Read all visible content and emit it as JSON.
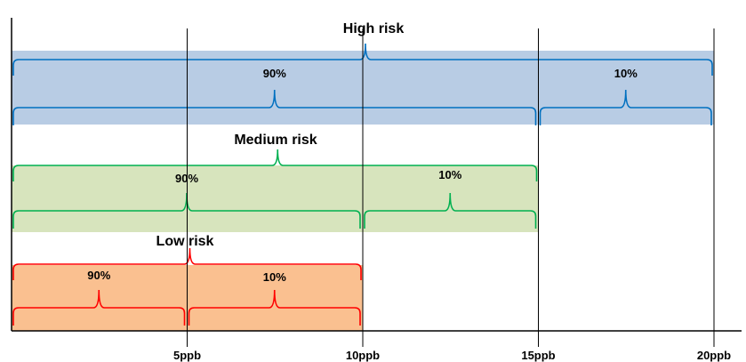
{
  "axis": {
    "ticks": [
      {
        "value": 5,
        "label": "5ppb"
      },
      {
        "value": 10,
        "label": "10ppb"
      },
      {
        "value": 15,
        "label": "15ppb"
      },
      {
        "value": 20,
        "label": "20ppb"
      }
    ]
  },
  "bands": [
    {
      "id": "high",
      "title": "High risk",
      "range": [
        0,
        20
      ],
      "fill": "#b8cce4",
      "stroke": "#0070c0",
      "segments": [
        {
          "label": "90%",
          "range": [
            0,
            15
          ]
        },
        {
          "label": "10%",
          "range": [
            15,
            20
          ]
        }
      ]
    },
    {
      "id": "medium",
      "title": "Medium risk",
      "range": [
        0,
        15
      ],
      "fill": "#d7e4bd",
      "stroke": "#00b050",
      "segments": [
        {
          "label": "90%",
          "range": [
            0,
            10
          ]
        },
        {
          "label": "10%",
          "range": [
            10,
            15
          ]
        }
      ]
    },
    {
      "id": "low",
      "title": "Low risk",
      "range": [
        0,
        10
      ],
      "fill": "#fac090",
      "stroke": "#ff0000",
      "segments": [
        {
          "label": "90%",
          "range": [
            0,
            5
          ]
        },
        {
          "label": "10%",
          "range": [
            5,
            10
          ]
        }
      ]
    }
  ]
}
